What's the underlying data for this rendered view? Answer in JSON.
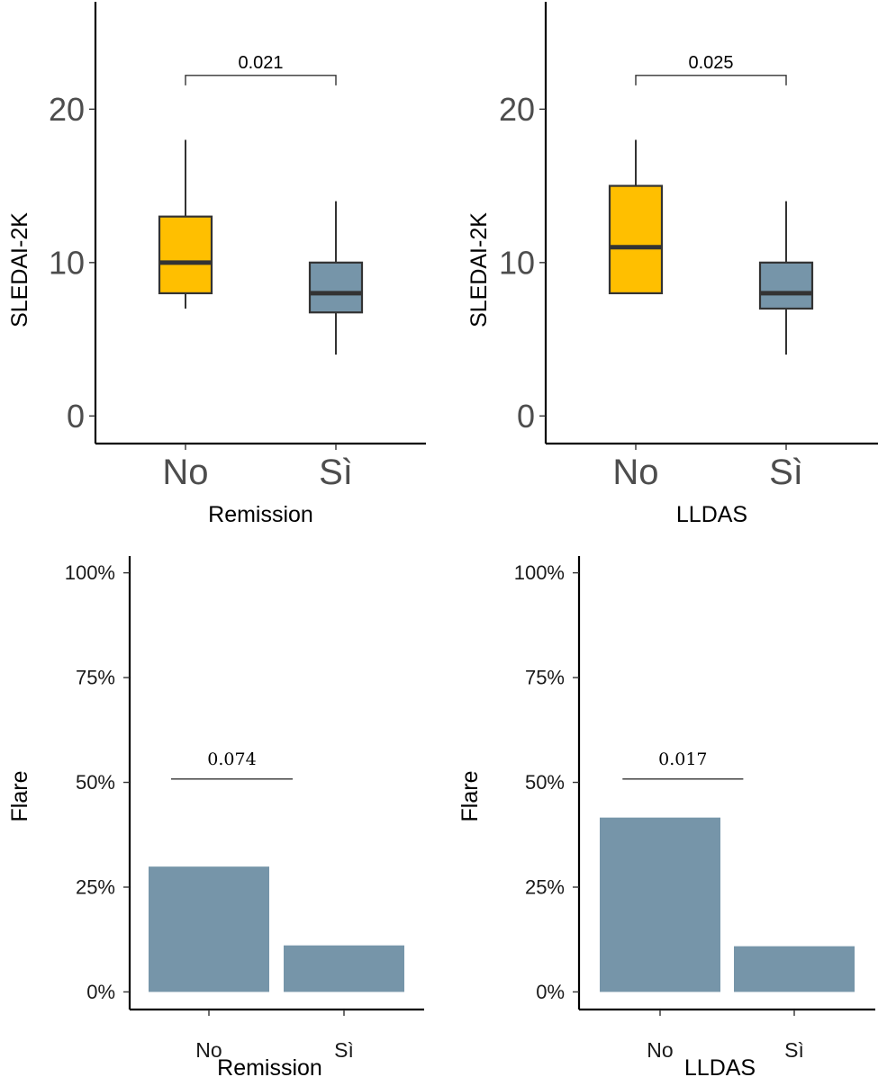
{
  "colors": {
    "no_box_fill": "#FFBF00",
    "si_box_fill": "#7695A9",
    "bar_fill": "#7695A9",
    "outline": "#333333"
  },
  "chart_data": [
    {
      "id": "box-remission",
      "type": "box",
      "title": "",
      "xlabel": "Remission",
      "ylabel": "SLEDAI-2K",
      "categories": [
        "No",
        "Sì"
      ],
      "ylim": [
        -1.8,
        27
      ],
      "yticks": [
        0,
        10,
        20
      ],
      "ytick_labels": [
        "0",
        "10",
        "20"
      ],
      "series": [
        {
          "name": "No",
          "min": 7,
          "q1": 8,
          "median": 10,
          "q3": 13,
          "max": 18,
          "fill": "#FFBF00"
        },
        {
          "name": "Sì",
          "min": 4,
          "q1": 6.75,
          "median": 8,
          "q3": 10,
          "max": 14,
          "fill": "#7695A9"
        }
      ],
      "annotation": {
        "label": "0.021",
        "type": "bracket",
        "y": 22.2,
        "from": "No",
        "to": "Sì"
      }
    },
    {
      "id": "box-lldas",
      "type": "box",
      "title": "",
      "xlabel": "LLDAS",
      "ylabel": "SLEDAI-2K",
      "categories": [
        "No",
        "Sì"
      ],
      "ylim": [
        -1.8,
        27
      ],
      "yticks": [
        0,
        10,
        20
      ],
      "ytick_labels": [
        "0",
        "10",
        "20"
      ],
      "series": [
        {
          "name": "No",
          "min": 8,
          "q1": 8,
          "median": 11,
          "q3": 15,
          "max": 18,
          "fill": "#FFBF00"
        },
        {
          "name": "Sì",
          "min": 4,
          "q1": 7,
          "median": 8,
          "q3": 10,
          "max": 14,
          "fill": "#7695A9"
        }
      ],
      "annotation": {
        "label": "0.025",
        "type": "bracket",
        "y": 22.2,
        "from": "No",
        "to": "Sì"
      }
    },
    {
      "id": "bar-remission",
      "type": "bar",
      "title": "",
      "xlabel": "Remission",
      "ylabel": "Flare",
      "categories": [
        "No",
        "Sì"
      ],
      "values": [
        29.9,
        11.1
      ],
      "unit": "%",
      "ylim": [
        -4.2,
        104
      ],
      "yticks": [
        0,
        25,
        50,
        75,
        100
      ],
      "ytick_labels": [
        "0%",
        "25%",
        "50%",
        "75%",
        "100%"
      ],
      "annotation": {
        "label": "0.074",
        "type": "line",
        "y": 50.8,
        "from": 0.72,
        "to": 1.62
      }
    },
    {
      "id": "bar-lldas",
      "type": "bar",
      "title": "",
      "xlabel": "LLDAS",
      "ylabel": "Flare",
      "categories": [
        "No",
        "Sì"
      ],
      "values": [
        41.6,
        10.9
      ],
      "unit": "%",
      "ylim": [
        -4.2,
        104
      ],
      "yticks": [
        0,
        25,
        50,
        75,
        100
      ],
      "ytick_labels": [
        "0%",
        "25%",
        "50%",
        "75%",
        "100%"
      ],
      "annotation": {
        "label": "0.017",
        "type": "line",
        "y": 50.8,
        "from": 0.72,
        "to": 1.62
      }
    }
  ]
}
